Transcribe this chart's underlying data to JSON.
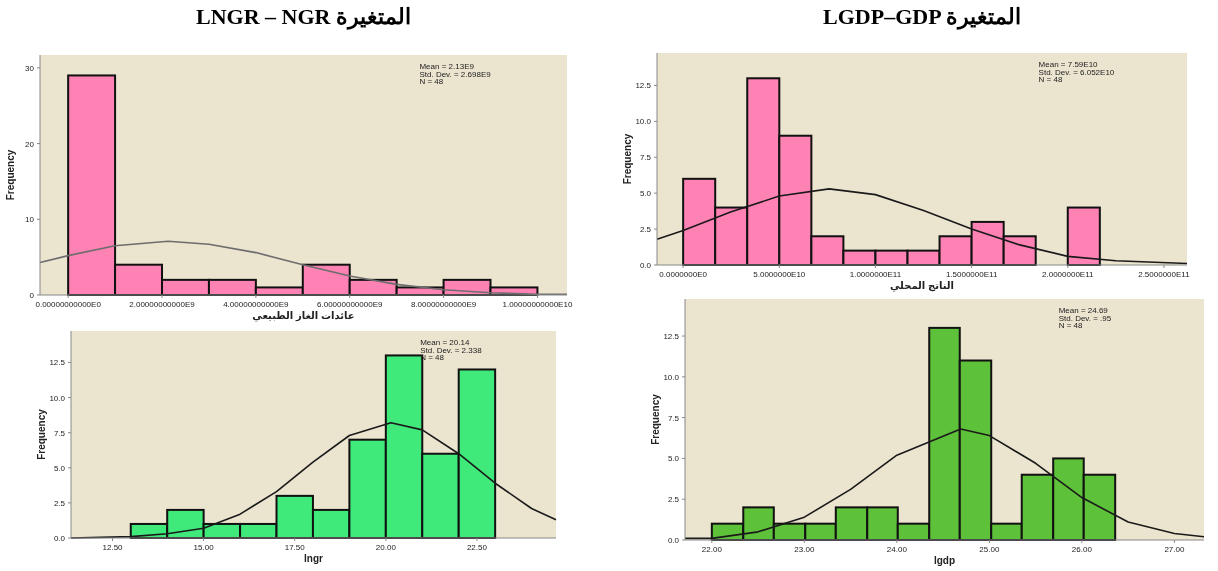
{
  "chart_data": [
    {
      "type": "histogram",
      "title": "LNGR – NGR المتغيرة",
      "xlabel": "عائدات الغاز الطبيعي",
      "ylabel": "Frequency",
      "color": "#ff82b4",
      "bins": [
        0,
        1000000000.0,
        2000000000.0,
        3000000000.0,
        4000000000.0,
        5000000000.0,
        6000000000.0,
        7000000000.0,
        8000000000.0,
        9000000000.0,
        10000000000.0
      ],
      "values": [
        29,
        4,
        2,
        2,
        1,
        4,
        2,
        1,
        2,
        1
      ],
      "xlim": [
        -600000000.0,
        10630000000.0
      ],
      "ylim": [
        0,
        31.7
      ],
      "xticks": [
        {
          "value": 0,
          "label": "0.00000000000E0"
        },
        {
          "value": 2000000000.0,
          "label": "2.00000000000E9"
        },
        {
          "value": 4000000000.0,
          "label": "4.00000000000E9"
        },
        {
          "value": 6000000000.0,
          "label": "6.00000000000E9"
        },
        {
          "value": 8000000000.0,
          "label": "8.00000000000E9"
        },
        {
          "value": 10000000000.0,
          "label": "1.00000000000E10"
        }
      ],
      "yticks": [
        0,
        10,
        20,
        30
      ],
      "annotations": [
        "Mean = 2.13E9",
        "Std. Dev. = 2.698E9",
        "N = 48"
      ],
      "series": [
        {
          "type": "line",
          "color": "#6d6d6d",
          "x": [
            -600000000.0,
            0,
            1000000000.0,
            2130000000.0,
            3000000000.0,
            4000000000.0,
            5000000000.0,
            6000000000.0,
            7000000000.0,
            8000000000.0,
            9000000000.0,
            10000000000.0,
            10630000000.0
          ],
          "values": [
            4.3,
            5.2,
            6.5,
            7.1,
            6.7,
            5.6,
            4.0,
            2.5,
            1.4,
            0.7,
            0.3,
            0.1,
            0.1
          ]
        }
      ]
    },
    {
      "type": "histogram",
      "title": "LGDP–GDP المتغيرة",
      "xlabel": "الناتج المحلي",
      "ylabel": "Frequency",
      "color": "#ff82b4",
      "bins": [
        0,
        16670000000.0,
        33330000000.0,
        50000000000.0,
        66670000000.0,
        83330000000.0,
        100000000000.0,
        116670000000.0,
        133330000000.0,
        150000000000.0,
        166670000000.0,
        183330000000.0,
        200000000000.0,
        216670000000.0
      ],
      "values": [
        6,
        4,
        13,
        9,
        2,
        1,
        1,
        1,
        2,
        3,
        2,
        0,
        4
      ],
      "xlim": [
        -13600000000.0,
        262000000000.0
      ],
      "ylim": [
        0,
        14.76
      ],
      "xticks": [
        {
          "value": 0,
          "label": "0.0000000E0"
        },
        {
          "value": 50000000000.0,
          "label": "5.0000000E10"
        },
        {
          "value": 100000000000.0,
          "label": "1.0000000E11"
        },
        {
          "value": 150000000000.0,
          "label": "1.5000000E11"
        },
        {
          "value": 200000000000.0,
          "label": "2.0000000E11"
        },
        {
          "value": 250000000000.0,
          "label": "2.5000000E11"
        }
      ],
      "yticks": [
        {
          "value": 0,
          "label": "0.0"
        },
        {
          "value": 2.5,
          "label": "2.5"
        },
        {
          "value": 5,
          "label": "5.0"
        },
        {
          "value": 7.5,
          "label": "7.5"
        },
        {
          "value": 10,
          "label": "10.0"
        },
        {
          "value": 12.5,
          "label": "12.5"
        }
      ],
      "annotations": [
        "Mean = 7.59E10",
        "Std. Dev. = 6.052E10",
        "N = 48"
      ],
      "series": [
        {
          "type": "line",
          "color": "#1a1a1a",
          "x": [
            -13600000000.0,
            0,
            25000000000.0,
            50000000000.0,
            75900000000.0,
            100000000000.0,
            125000000000.0,
            150000000000.0,
            175000000000.0,
            200000000000.0,
            225000000000.0,
            262000000000.0
          ],
          "values": [
            1.8,
            2.4,
            3.7,
            4.8,
            5.3,
            4.9,
            3.8,
            2.5,
            1.4,
            0.6,
            0.3,
            0.1
          ]
        }
      ]
    },
    {
      "type": "histogram",
      "xlabel": "lngr",
      "ylabel": "Frequency",
      "color": "#3fea7a",
      "bins": [
        13,
        14,
        15,
        16,
        17,
        18,
        19,
        20,
        21,
        22,
        23
      ],
      "values": [
        1,
        2,
        1,
        1,
        3,
        2,
        7,
        13,
        6,
        12
      ],
      "xlim": [
        11.36,
        24.67
      ],
      "ylim": [
        0,
        14.74
      ],
      "xticks": [
        {
          "value": 12.5,
          "label": "12.50"
        },
        {
          "value": 15,
          "label": "15.00"
        },
        {
          "value": 17.5,
          "label": "17.50"
        },
        {
          "value": 20,
          "label": "20.00"
        },
        {
          "value": 22.5,
          "label": "22.50"
        }
      ],
      "yticks": [
        {
          "value": 0,
          "label": "0.0"
        },
        {
          "value": 2.5,
          "label": "2.5"
        },
        {
          "value": 5,
          "label": "5.0"
        },
        {
          "value": 7.5,
          "label": "7.5"
        },
        {
          "value": 10,
          "label": "10.0"
        },
        {
          "value": 12.5,
          "label": "12.5"
        }
      ],
      "annotations": [
        "Mean = 20.14",
        "Std. Dev. = 2.338",
        "N = 48"
      ],
      "series": [
        {
          "type": "line",
          "color": "#1a1a1a",
          "x": [
            11.36,
            13,
            14,
            15,
            16,
            17,
            18,
            19,
            20.14,
            21,
            22,
            23,
            24,
            24.67
          ],
          "values": [
            0,
            0.1,
            0.3,
            0.7,
            1.7,
            3.3,
            5.4,
            7.3,
            8.2,
            7.7,
            6.0,
            3.9,
            2.1,
            1.3
          ]
        }
      ]
    },
    {
      "type": "histogram",
      "xlabel": "lgdp",
      "ylabel": "Frequency",
      "color": "#5ec13a",
      "bins": [
        22.0,
        22.34,
        22.67,
        23.01,
        23.34,
        23.68,
        24.01,
        24.35,
        24.68,
        25.02,
        25.35,
        25.69,
        26.02,
        26.36
      ],
      "values": [
        1,
        2,
        1,
        1,
        2,
        2,
        1,
        13,
        11,
        1,
        4,
        5,
        4
      ],
      "xlim": [
        21.71,
        27.32
      ],
      "ylim": [
        0,
        14.77
      ],
      "xticks": [
        {
          "value": 22,
          "label": "22.00"
        },
        {
          "value": 23,
          "label": "23.00"
        },
        {
          "value": 24,
          "label": "24.00"
        },
        {
          "value": 25,
          "label": "25.00"
        },
        {
          "value": 26,
          "label": "26.00"
        },
        {
          "value": 27,
          "label": "27.00"
        }
      ],
      "yticks": [
        {
          "value": 0,
          "label": "0.0"
        },
        {
          "value": 2.5,
          "label": "2.5"
        },
        {
          "value": 5,
          "label": "5.0"
        },
        {
          "value": 7.5,
          "label": "7.5"
        },
        {
          "value": 10,
          "label": "10.0"
        },
        {
          "value": 12.5,
          "label": "12.5"
        }
      ],
      "annotations": [
        "Mean = 24.69",
        "Std. Dev. = .95",
        "N = 48"
      ],
      "series": [
        {
          "type": "line",
          "color": "#1a1a1a",
          "x": [
            21.71,
            22,
            22.5,
            23,
            23.5,
            24,
            24.69,
            25,
            25.5,
            26,
            26.5,
            27,
            27.32
          ],
          "values": [
            0.1,
            0.1,
            0.5,
            1.4,
            3.1,
            5.2,
            6.8,
            6.4,
            4.7,
            2.6,
            1.1,
            0.4,
            0.2
          ]
        }
      ]
    }
  ]
}
